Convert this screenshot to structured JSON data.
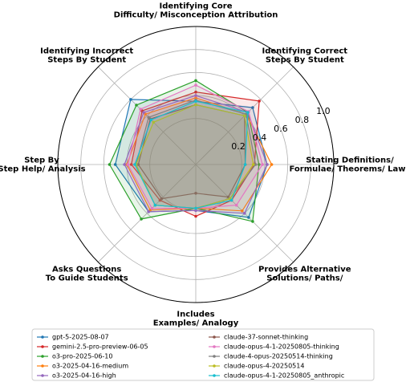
{
  "chart_data": {
    "type": "radar",
    "categories": [
      "Identifying Core\nDifficulty/ Misconception Attribution",
      "Identifying Correct\nSteps By Student",
      "Stating Definitions/\nFormulae/ Theorems/ Laws",
      "Provides Alternative\nSolutions/ Paths/",
      "Includes\nExamples/ Analogy",
      "Asks Questions\nTo Guide Students",
      "Step By\nStep Help/ Analysis",
      "Identifying Incorrect\nSteps By Student"
    ],
    "rlim": [
      -0.2,
      1.0
    ],
    "rticks": [
      0.2,
      0.4,
      0.6,
      0.8,
      {
        "value": 1.0,
        "label": "1.0"
      }
    ],
    "grid": true,
    "legend": "bottom",
    "series": [
      {
        "name": "gpt-5-2025-08-07",
        "color": "#1f77b4",
        "values": [
          0.35,
          0.5,
          0.42,
          0.45,
          0.2,
          0.38,
          0.5,
          0.6
        ]
      },
      {
        "name": "gemini-2.5-pro-preview-06-05",
        "color": "#d62728",
        "values": [
          0.43,
          0.58,
          0.31,
          0.24,
          0.25,
          0.24,
          0.36,
          0.46
        ]
      },
      {
        "name": "o3-pro-2025-06-10",
        "color": "#2ca02c",
        "values": [
          0.53,
          0.44,
          0.35,
          0.5,
          0.18,
          0.47,
          0.55,
          0.53
        ]
      },
      {
        "name": "o3-2025-04-16-medium",
        "color": "#ff7f0e",
        "values": [
          0.38,
          0.42,
          0.46,
          0.37,
          0.18,
          0.36,
          0.4,
          0.42
        ]
      },
      {
        "name": "o3-2025-04-16-high",
        "color": "#9467bd",
        "values": [
          0.4,
          0.44,
          0.42,
          0.4,
          0.2,
          0.38,
          0.42,
          0.44
        ]
      },
      {
        "name": "claude-37-sonnet-thinking",
        "color": "#8c564b",
        "values": [
          0.32,
          0.4,
          0.23,
          0.2,
          0.05,
          0.22,
          0.3,
          0.36
        ]
      },
      {
        "name": "claude-opus-4-1-20250805-thinking",
        "color": "#e377c2",
        "values": [
          0.49,
          0.45,
          0.38,
          0.3,
          0.18,
          0.34,
          0.39,
          0.48
        ]
      },
      {
        "name": "claude-4-opus-20250514-thinking",
        "color": "#7f7f7f",
        "values": [
          0.36,
          0.42,
          0.32,
          0.22,
          0.18,
          0.3,
          0.32,
          0.38
        ]
      },
      {
        "name": "claude-opus-4-20250514",
        "color": "#bcbd22",
        "values": [
          0.32,
          0.4,
          0.3,
          0.22,
          0.18,
          0.3,
          0.32,
          0.32
        ]
      },
      {
        "name": "claude-opus-4-1-20250805_anthropic",
        "color": "#17becf",
        "values": [
          0.35,
          0.44,
          0.23,
          0.24,
          0.18,
          0.3,
          0.33,
          0.35
        ]
      }
    ]
  }
}
